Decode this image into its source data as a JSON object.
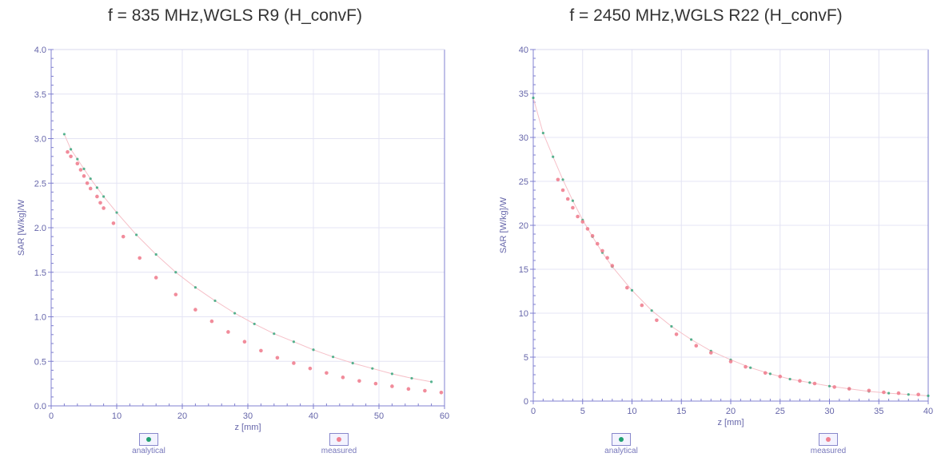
{
  "charts": [
    {
      "title": "f = 835 MHz,WGLS R9 (H_convF)",
      "xlabel": "z [mm]",
      "ylabel": "SAR [W/kg]/W",
      "legend_analytical": "analytical",
      "legend_measured": "measured"
    },
    {
      "title": "f = 2450 MHz,WGLS R22 (H_convF)",
      "xlabel": "z [mm]",
      "ylabel": "SAR [W/kg]/W",
      "legend_analytical": "analytical",
      "legend_measured": "measured"
    }
  ],
  "colors": {
    "axis": "#8080d0",
    "analytical": "#20a070",
    "measured": "#f08090",
    "grid": "#e4e4f4",
    "text": "#6666aa"
  },
  "chart_data": [
    {
      "type": "scatter",
      "title": "f = 835 MHz,WGLS R9 (H_convF)",
      "xlabel": "z [mm]",
      "ylabel": "SAR [W/kg]/W",
      "xlim": [
        0,
        60
      ],
      "ylim": [
        0,
        4.0
      ],
      "x_ticks": [
        0,
        10,
        20,
        30,
        40,
        50,
        60
      ],
      "y_ticks": [
        0.0,
        0.5,
        1.0,
        1.5,
        2.0,
        2.5,
        3.0,
        3.5,
        4.0
      ],
      "x_tick_labels": [
        "0",
        "10",
        "20",
        "30",
        "40",
        "50",
        "60"
      ],
      "y_tick_labels": [
        "0.0",
        "0.5",
        "1.0",
        "1.5",
        "2.0",
        "2.5",
        "3.0",
        "3.5",
        "4.0"
      ],
      "grid": true,
      "legend_position": "bottom",
      "series": [
        {
          "name": "analytical",
          "x": [
            2,
            3,
            4,
            5,
            6,
            7,
            8,
            10,
            13,
            16,
            19,
            22,
            25,
            28,
            31,
            34,
            37,
            40,
            43,
            46,
            49,
            52,
            55,
            58
          ],
          "y": [
            3.05,
            2.88,
            2.77,
            2.66,
            2.55,
            2.45,
            2.35,
            2.17,
            1.92,
            1.7,
            1.5,
            1.33,
            1.18,
            1.04,
            0.92,
            0.81,
            0.72,
            0.63,
            0.55,
            0.48,
            0.42,
            0.36,
            0.31,
            0.27
          ]
        },
        {
          "name": "measured",
          "x": [
            2.5,
            3,
            4,
            4.5,
            5,
            5.5,
            6,
            7,
            7.5,
            8,
            9.5,
            11,
            13.5,
            16,
            19,
            22,
            24.5,
            27,
            29.5,
            32,
            34.5,
            37,
            39.5,
            42,
            44.5,
            47,
            49.5,
            52,
            54.5,
            57,
            59.5
          ],
          "y": [
            2.85,
            2.8,
            2.72,
            2.65,
            2.58,
            2.5,
            2.44,
            2.35,
            2.28,
            2.22,
            2.05,
            1.9,
            1.66,
            1.44,
            1.25,
            1.08,
            0.95,
            0.83,
            0.72,
            0.62,
            0.54,
            0.48,
            0.42,
            0.37,
            0.32,
            0.28,
            0.25,
            0.22,
            0.19,
            0.17,
            0.15
          ]
        }
      ]
    },
    {
      "type": "scatter",
      "title": "f = 2450 MHz,WGLS R22 (H_convF)",
      "xlabel": "z [mm]",
      "ylabel": "SAR [W/kg]/W",
      "xlim": [
        0,
        40
      ],
      "ylim": [
        0,
        40
      ],
      "x_ticks": [
        0,
        5,
        10,
        15,
        20,
        25,
        30,
        35,
        40
      ],
      "y_ticks": [
        0,
        5,
        10,
        15,
        20,
        25,
        30,
        35,
        40
      ],
      "x_tick_labels": [
        "0",
        "5",
        "10",
        "15",
        "20",
        "25",
        "30",
        "35",
        "40"
      ],
      "y_tick_labels": [
        "0",
        "5",
        "10",
        "15",
        "20",
        "25",
        "30",
        "35",
        "40"
      ],
      "grid": true,
      "legend_position": "bottom",
      "series": [
        {
          "name": "analytical",
          "x": [
            0,
            1,
            2,
            3,
            4,
            5,
            6,
            7,
            8,
            10,
            12,
            14,
            16,
            18,
            20,
            22,
            24,
            26,
            28,
            30,
            32,
            34,
            36,
            38,
            40
          ],
          "y": [
            34.5,
            30.5,
            27.8,
            25.2,
            22.8,
            20.6,
            18.7,
            16.9,
            15.3,
            12.6,
            10.3,
            8.5,
            7.0,
            5.7,
            4.7,
            3.8,
            3.1,
            2.5,
            2.1,
            1.7,
            1.4,
            1.1,
            0.9,
            0.75,
            0.6
          ]
        },
        {
          "name": "measured",
          "x": [
            2.5,
            3,
            3.5,
            4,
            4.5,
            5,
            5.5,
            6,
            6.5,
            7,
            7.5,
            8,
            9.5,
            11,
            12.5,
            14.5,
            16.5,
            18,
            20,
            21.5,
            23.5,
            25,
            27,
            28.5,
            30.5,
            32,
            34,
            35.5,
            37,
            39
          ],
          "y": [
            25.2,
            24.0,
            23.0,
            22.0,
            21.0,
            20.4,
            19.6,
            18.8,
            17.9,
            17.1,
            16.3,
            15.4,
            12.9,
            10.9,
            9.2,
            7.6,
            6.3,
            5.5,
            4.5,
            3.9,
            3.2,
            2.8,
            2.3,
            2.0,
            1.6,
            1.4,
            1.2,
            1.0,
            0.9,
            0.75
          ]
        }
      ]
    }
  ]
}
